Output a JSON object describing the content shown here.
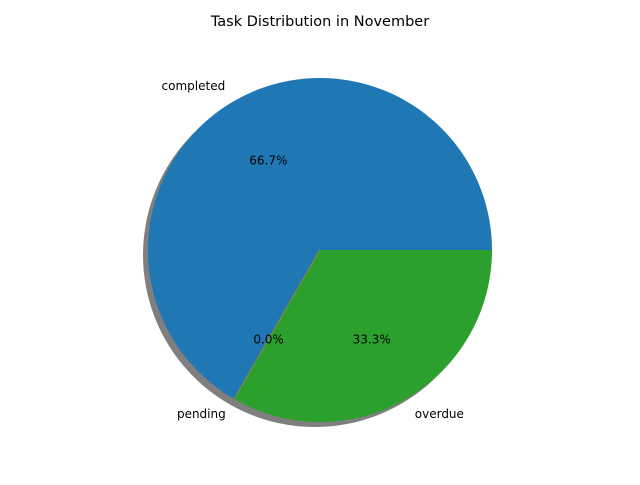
{
  "chart_data": {
    "type": "pie",
    "title": "Task Distribution in November",
    "categories": [
      "completed",
      "pending",
      "overdue"
    ],
    "values": [
      66.7,
      0.0,
      33.3
    ],
    "percent_labels": [
      "66.7%",
      "0.0%",
      "33.3%"
    ],
    "colors": [
      "#1f77b4",
      "#ff7f0e",
      "#2ca02c"
    ],
    "shadow": true,
    "start_angle_deg": 0,
    "direction": "counterclockwise",
    "legend": "none"
  }
}
